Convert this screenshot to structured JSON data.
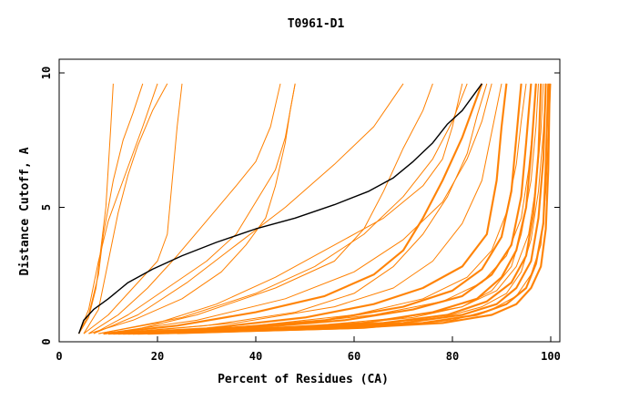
{
  "chart_data": {
    "type": "line",
    "title": "T0961-D1",
    "xlabel": "Percent of Residues (CA)",
    "ylabel": "Distance Cutoff, A",
    "xlim": [
      0,
      100
    ],
    "ylim": [
      0,
      10
    ],
    "x_ticks": [
      "0",
      "20",
      "40",
      "60",
      "80",
      "100"
    ],
    "y_ticks": [
      "0",
      "5",
      "10"
    ],
    "grid": false,
    "legend": "none",
    "colors": {
      "models": "#ff8000",
      "highlight": "#000000",
      "axis": "#000000"
    },
    "highlight_series": {
      "points": [
        [
          4,
          0.3
        ],
        [
          5,
          0.8
        ],
        [
          7,
          1.2
        ],
        [
          10,
          1.6
        ],
        [
          14,
          2.2
        ],
        [
          19,
          2.7
        ],
        [
          25,
          3.2
        ],
        [
          32,
          3.7
        ],
        [
          40,
          4.2
        ],
        [
          48,
          4.6
        ],
        [
          56,
          5.1
        ],
        [
          63,
          5.6
        ],
        [
          68,
          6.1
        ],
        [
          72,
          6.7
        ],
        [
          76,
          7.4
        ],
        [
          79,
          8.1
        ],
        [
          82,
          8.6
        ],
        [
          84,
          9.1
        ],
        [
          86,
          9.6
        ]
      ]
    },
    "model_series": [
      {
        "points": [
          [
            4,
            0.3
          ],
          [
            6,
            0.9
          ],
          [
            7.5,
            2
          ],
          [
            8.5,
            3.5
          ],
          [
            9.5,
            5
          ],
          [
            10,
            6.5
          ],
          [
            10.5,
            8
          ],
          [
            11,
            9.6
          ]
        ]
      },
      {
        "points": [
          [
            4,
            0.3
          ],
          [
            6,
            1
          ],
          [
            8,
            2.5
          ],
          [
            9,
            4
          ],
          [
            11,
            6
          ],
          [
            13,
            7.5
          ],
          [
            15,
            8.5
          ],
          [
            17,
            9.6
          ]
        ]
      },
      {
        "points": [
          [
            4,
            0.3
          ],
          [
            6,
            1.2
          ],
          [
            8,
            3
          ],
          [
            10,
            4.5
          ],
          [
            13,
            6
          ],
          [
            15,
            7
          ],
          [
            17,
            8
          ],
          [
            20,
            9.6
          ]
        ]
      },
      {
        "points": [
          [
            5,
            0.3
          ],
          [
            8,
            1.2
          ],
          [
            10,
            3
          ],
          [
            12,
            4.8
          ],
          [
            14,
            6.2
          ],
          [
            16,
            7.3
          ],
          [
            19,
            8.6
          ],
          [
            22,
            9.6
          ]
        ]
      },
      {
        "points": [
          [
            5,
            0.3
          ],
          [
            10,
            1
          ],
          [
            15,
            2
          ],
          [
            20,
            3
          ],
          [
            22,
            4
          ],
          [
            23,
            6
          ],
          [
            24,
            8
          ],
          [
            25,
            9.6
          ]
        ]
      },
      {
        "points": [
          [
            6,
            0.3
          ],
          [
            12,
            1
          ],
          [
            18,
            2
          ],
          [
            24,
            3.2
          ],
          [
            30,
            4.5
          ],
          [
            36,
            5.8
          ],
          [
            40,
            6.7
          ],
          [
            43,
            8
          ],
          [
            45,
            9.6
          ]
        ]
      },
      {
        "points": [
          [
            6,
            0.3
          ],
          [
            15,
            0.8
          ],
          [
            25,
            1.6
          ],
          [
            33,
            2.6
          ],
          [
            38,
            3.6
          ],
          [
            42,
            4.6
          ],
          [
            44,
            5.8
          ],
          [
            46,
            7.4
          ],
          [
            47,
            8.6
          ],
          [
            48,
            9.6
          ]
        ]
      },
      {
        "points": [
          [
            7,
            0.3
          ],
          [
            16,
            1
          ],
          [
            26,
            2.2
          ],
          [
            36,
            3.6
          ],
          [
            46,
            5
          ],
          [
            56,
            6.6
          ],
          [
            64,
            8
          ],
          [
            70,
            9.6
          ]
        ]
      },
      {
        "points": [
          [
            8,
            0.3
          ],
          [
            20,
            0.7
          ],
          [
            32,
            1.4
          ],
          [
            44,
            2.4
          ],
          [
            56,
            3.6
          ],
          [
            66,
            4.6
          ],
          [
            74,
            5.8
          ],
          [
            78,
            6.8
          ],
          [
            80,
            8
          ],
          [
            82,
            9.6
          ]
        ]
      },
      {
        "points": [
          [
            9,
            0.3
          ],
          [
            24,
            0.6
          ],
          [
            40,
            1.1
          ],
          [
            54,
            1.7
          ],
          [
            64,
            2.5
          ],
          [
            70,
            3.4
          ],
          [
            74,
            4.6
          ],
          [
            78,
            6
          ],
          [
            82,
            7.6
          ],
          [
            86,
            9.6
          ]
        ]
      },
      {
        "points": [
          [
            10,
            0.3
          ],
          [
            30,
            0.5
          ],
          [
            50,
            0.9
          ],
          [
            64,
            1.4
          ],
          [
            74,
            2
          ],
          [
            82,
            2.8
          ],
          [
            87,
            4
          ],
          [
            89,
            6
          ],
          [
            90,
            8
          ],
          [
            91,
            9.6
          ]
        ]
      },
      {
        "points": [
          [
            11,
            0.3
          ],
          [
            34,
            0.5
          ],
          [
            54,
            0.8
          ],
          [
            70,
            1.3
          ],
          [
            80,
            1.9
          ],
          [
            86,
            2.7
          ],
          [
            90,
            3.9
          ],
          [
            92,
            5.6
          ],
          [
            93,
            7.6
          ],
          [
            94,
            9.6
          ]
        ]
      },
      {
        "points": [
          [
            12,
            0.3
          ],
          [
            38,
            0.5
          ],
          [
            58,
            0.8
          ],
          [
            72,
            1.2
          ],
          [
            82,
            1.7
          ],
          [
            88,
            2.5
          ],
          [
            92,
            3.6
          ],
          [
            94,
            5.4
          ],
          [
            95,
            7.4
          ],
          [
            96,
            9.6
          ]
        ]
      },
      {
        "points": [
          [
            13,
            0.3
          ],
          [
            42,
            0.5
          ],
          [
            62,
            0.7
          ],
          [
            76,
            1.1
          ],
          [
            85,
            1.6
          ],
          [
            90,
            2.4
          ],
          [
            93,
            3.4
          ],
          [
            95,
            5
          ],
          [
            96,
            7
          ],
          [
            97,
            9.6
          ]
        ]
      },
      {
        "points": [
          [
            14,
            0.3
          ],
          [
            46,
            0.5
          ],
          [
            66,
            0.7
          ],
          [
            79,
            1
          ],
          [
            87,
            1.5
          ],
          [
            92,
            2.2
          ],
          [
            95,
            3.2
          ],
          [
            96.5,
            4.8
          ],
          [
            97.5,
            7
          ],
          [
            98,
            9.6
          ]
        ]
      },
      {
        "points": [
          [
            15,
            0.3
          ],
          [
            50,
            0.5
          ],
          [
            70,
            0.7
          ],
          [
            82,
            1
          ],
          [
            89,
            1.4
          ],
          [
            93,
            2
          ],
          [
            96,
            3
          ],
          [
            97.5,
            4.6
          ],
          [
            98.5,
            6.8
          ],
          [
            99,
            9.6
          ]
        ]
      },
      {
        "points": [
          [
            16,
            0.3
          ],
          [
            54,
            0.5
          ],
          [
            74,
            0.7
          ],
          [
            85,
            1
          ],
          [
            91,
            1.4
          ],
          [
            95,
            2
          ],
          [
            97,
            2.9
          ],
          [
            98.5,
            4.4
          ],
          [
            99,
            6.6
          ],
          [
            99.5,
            9.6
          ]
        ]
      },
      {
        "points": [
          [
            18,
            0.3
          ],
          [
            58,
            0.5
          ],
          [
            78,
            0.7
          ],
          [
            88,
            1
          ],
          [
            93,
            1.4
          ],
          [
            96,
            2
          ],
          [
            98,
            2.8
          ],
          [
            99,
            4.2
          ],
          [
            99.5,
            6.4
          ],
          [
            99.8,
            9.6
          ]
        ]
      },
      {
        "points": [
          [
            8,
            0.3
          ],
          [
            25,
            0.9
          ],
          [
            40,
            1.8
          ],
          [
            52,
            2.8
          ],
          [
            62,
            4
          ],
          [
            70,
            5.4
          ],
          [
            76,
            6.8
          ],
          [
            80,
            8.2
          ],
          [
            83,
            9.6
          ]
        ]
      },
      {
        "points": [
          [
            9,
            0.3
          ],
          [
            28,
            0.8
          ],
          [
            46,
            1.6
          ],
          [
            60,
            2.6
          ],
          [
            70,
            3.8
          ],
          [
            78,
            5.2
          ],
          [
            83,
            6.8
          ],
          [
            86,
            8.2
          ],
          [
            88,
            9.6
          ]
        ]
      },
      {
        "points": [
          [
            10,
            0.3
          ],
          [
            36,
            0.7
          ],
          [
            56,
            1.3
          ],
          [
            68,
            2
          ],
          [
            76,
            3
          ],
          [
            82,
            4.4
          ],
          [
            86,
            6
          ],
          [
            88,
            7.8
          ],
          [
            90,
            9.6
          ]
        ]
      },
      {
        "points": [
          [
            7,
            0.3
          ],
          [
            14,
            1
          ],
          [
            22,
            2
          ],
          [
            30,
            3
          ],
          [
            36,
            4
          ],
          [
            40,
            5.2
          ],
          [
            44,
            6.4
          ],
          [
            46,
            7.6
          ],
          [
            48,
            9.6
          ]
        ]
      },
      {
        "points": [
          [
            12,
            0.3
          ],
          [
            28,
            1
          ],
          [
            44,
            2
          ],
          [
            56,
            3
          ],
          [
            62,
            4.2
          ],
          [
            66,
            5.6
          ],
          [
            70,
            7.2
          ],
          [
            74,
            8.6
          ],
          [
            76,
            9.6
          ]
        ]
      },
      {
        "points": [
          [
            11,
            0.3
          ],
          [
            30,
            0.6
          ],
          [
            48,
            1.1
          ],
          [
            60,
            1.8
          ],
          [
            68,
            2.8
          ],
          [
            74,
            4
          ],
          [
            79,
            5.4
          ],
          [
            83,
            7
          ],
          [
            85,
            8.4
          ],
          [
            87,
            9.6
          ]
        ]
      },
      {
        "points": [
          [
            20,
            0.3
          ],
          [
            55,
            0.6
          ],
          [
            72,
            0.9
          ],
          [
            82,
            1.3
          ],
          [
            88,
            1.9
          ],
          [
            92,
            2.8
          ],
          [
            94,
            4
          ],
          [
            96,
            6
          ],
          [
            97,
            8
          ],
          [
            97.5,
            9.6
          ]
        ]
      },
      {
        "points": [
          [
            22,
            0.3
          ],
          [
            60,
            0.6
          ],
          [
            78,
            0.9
          ],
          [
            86,
            1.3
          ],
          [
            91,
            1.8
          ],
          [
            94,
            2.6
          ],
          [
            96,
            3.8
          ],
          [
            97.5,
            5.6
          ],
          [
            98.5,
            7.8
          ],
          [
            99,
            9.6
          ]
        ]
      },
      {
        "points": [
          [
            24,
            0.3
          ],
          [
            62,
            0.5
          ],
          [
            80,
            0.8
          ],
          [
            88,
            1.2
          ],
          [
            93,
            1.7
          ],
          [
            96,
            2.5
          ],
          [
            98,
            3.6
          ],
          [
            99,
            5.6
          ],
          [
            99.5,
            7.6
          ],
          [
            100,
            9.6
          ]
        ]
      },
      {
        "points": [
          [
            14,
            0.3
          ],
          [
            40,
            0.6
          ],
          [
            60,
            1
          ],
          [
            74,
            1.6
          ],
          [
            83,
            2.4
          ],
          [
            88,
            3.4
          ],
          [
            91,
            4.8
          ],
          [
            93,
            6.6
          ],
          [
            94,
            8.2
          ],
          [
            95,
            9.6
          ]
        ]
      },
      {
        "points": [
          [
            17,
            0.3
          ],
          [
            44,
            0.6
          ],
          [
            64,
            1
          ],
          [
            78,
            1.5
          ],
          [
            86,
            2.2
          ],
          [
            91,
            3.2
          ],
          [
            94,
            4.6
          ],
          [
            95.5,
            6.4
          ],
          [
            96.5,
            8.2
          ],
          [
            97,
            9.6
          ]
        ]
      },
      {
        "points": [
          [
            19,
            0.3
          ],
          [
            52,
            0.6
          ],
          [
            70,
            0.9
          ],
          [
            82,
            1.3
          ],
          [
            89,
            1.9
          ],
          [
            93,
            2.8
          ],
          [
            95.5,
            4
          ],
          [
            97,
            5.8
          ],
          [
            98,
            7.8
          ],
          [
            98.5,
            9.6
          ]
        ]
      }
    ]
  }
}
